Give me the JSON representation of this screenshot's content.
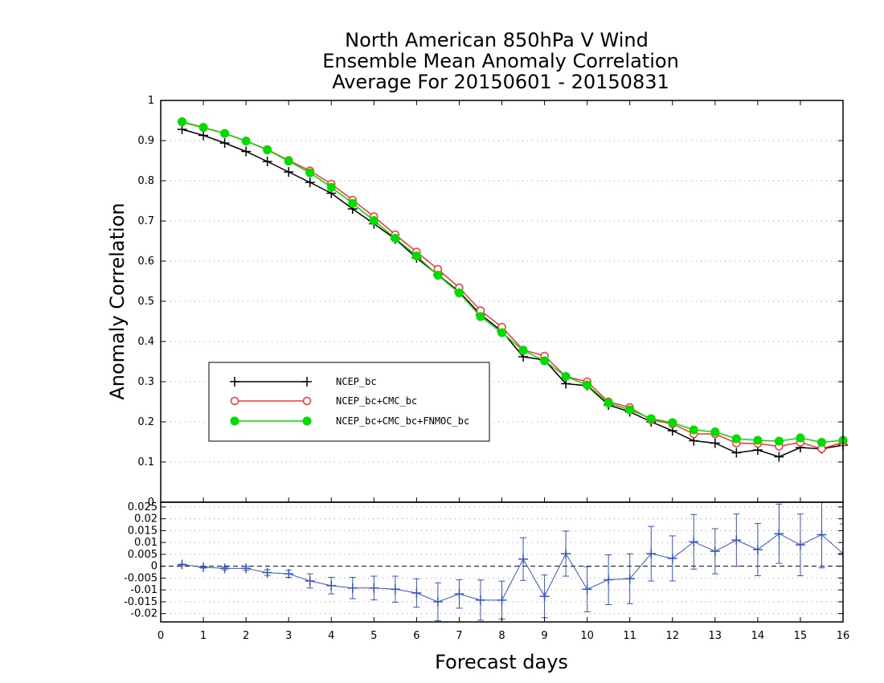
{
  "chart_data": {
    "type": "line",
    "title_lines": [
      "North American 850hPa V Wind",
      "Ensemble Mean Anomaly Correlation",
      "Average For 20150601 - 20150831"
    ],
    "xlabel": "Forecast days",
    "ylabel": "Anomaly Correlation",
    "xlim": [
      0,
      16
    ],
    "x_ticks": [
      0,
      1,
      2,
      3,
      4,
      5,
      6,
      7,
      8,
      9,
      10,
      11,
      12,
      13,
      14,
      15,
      16
    ],
    "top_panel": {
      "ylim": [
        0,
        1
      ],
      "y_ticks": [
        0,
        0.1,
        0.2,
        0.3,
        0.4,
        0.5,
        0.6,
        0.7,
        0.8,
        0.9,
        1
      ],
      "y_tick_labels": [
        "0",
        "0.1",
        "0.2",
        "0.3",
        "0.4",
        "0.5",
        "0.6",
        "0.7",
        "0.8",
        "0.9",
        "1"
      ],
      "grid": "horizontal-dotted",
      "x": [
        0.5,
        1,
        1.5,
        2,
        2.5,
        3,
        3.5,
        4,
        4.5,
        5,
        5.5,
        6,
        6.5,
        7,
        7.5,
        8,
        8.5,
        9,
        9.5,
        10,
        10.5,
        11,
        11.5,
        12,
        12.5,
        13,
        13.5,
        14,
        14.5,
        15,
        15.5,
        16
      ],
      "series": [
        {
          "name": "NCEP_bc",
          "color": "#000000",
          "marker": "plus",
          "values": [
            0.928,
            0.913,
            0.894,
            0.873,
            0.848,
            0.822,
            0.796,
            0.769,
            0.73,
            0.693,
            0.655,
            0.608,
            0.566,
            0.524,
            0.467,
            0.426,
            0.362,
            0.354,
            0.295,
            0.29,
            0.242,
            0.225,
            0.2,
            0.178,
            0.153,
            0.147,
            0.123,
            0.13,
            0.113,
            0.136,
            0.133,
            0.142
          ]
        },
        {
          "name": "NCEP_bc+CMC_bc",
          "color": "#ff3333",
          "marker": "open-circle",
          "values": [
            0.946,
            0.932,
            0.918,
            0.899,
            0.878,
            0.851,
            0.825,
            0.792,
            0.752,
            0.711,
            0.666,
            0.623,
            0.58,
            0.534,
            0.477,
            0.436,
            0.379,
            0.364,
            0.313,
            0.3,
            0.25,
            0.236,
            0.205,
            0.195,
            0.17,
            0.17,
            0.147,
            0.146,
            0.139,
            0.149,
            0.133,
            0.149
          ]
        },
        {
          "name": "NCEP_bc+CMC_bc+FNMOC_bc",
          "color": "#00dd00",
          "marker": "filled-circle",
          "values": [
            0.947,
            0.933,
            0.918,
            0.899,
            0.877,
            0.849,
            0.82,
            0.784,
            0.744,
            0.701,
            0.657,
            0.613,
            0.565,
            0.521,
            0.462,
            0.422,
            0.378,
            0.352,
            0.313,
            0.292,
            0.247,
            0.23,
            0.208,
            0.198,
            0.18,
            0.175,
            0.158,
            0.154,
            0.152,
            0.16,
            0.149,
            0.154
          ]
        }
      ],
      "legend": {
        "placement": "middle-left"
      }
    },
    "bottom_panel": {
      "ylim": [
        -0.0235,
        0.027
      ],
      "y_ticks": [
        -0.02,
        -0.015,
        -0.01,
        -0.005,
        0,
        0.005,
        0.01,
        0.015,
        0.02,
        0.025
      ],
      "y_tick_labels": [
        "-0.02",
        "-0.015",
        "-0.01",
        "-0.005",
        "0",
        "0.005",
        "0.01",
        "0.015",
        "0.02",
        "0.025"
      ],
      "grid": "horizontal-dotted",
      "zero_line": "dashed",
      "series": {
        "color": "#3355cc",
        "marker": "plus",
        "values": [
          0.0007,
          -0.0004,
          -0.0009,
          -0.0009,
          -0.0027,
          -0.0032,
          -0.0062,
          -0.0082,
          -0.0092,
          -0.0092,
          -0.0097,
          -0.0113,
          -0.015,
          -0.0117,
          -0.0143,
          -0.0143,
          0.003,
          -0.0127,
          0.0053,
          -0.0097,
          -0.0057,
          -0.0053,
          0.0053,
          0.0033,
          0.0103,
          0.0063,
          0.011,
          0.007,
          0.0137,
          0.009,
          0.0133,
          0.0053
        ],
        "errors": [
          0.0002,
          0.0004,
          0.0006,
          0.0008,
          0.0012,
          0.0015,
          0.003,
          0.0035,
          0.0045,
          0.005,
          0.0055,
          0.006,
          0.008,
          0.006,
          0.0085,
          0.008,
          0.009,
          0.009,
          0.0095,
          0.0095,
          0.0105,
          0.0105,
          0.0115,
          0.0095,
          0.0115,
          0.0095,
          0.011,
          0.011,
          0.0125,
          0.013,
          0.014,
          0.0125
        ]
      }
    }
  }
}
